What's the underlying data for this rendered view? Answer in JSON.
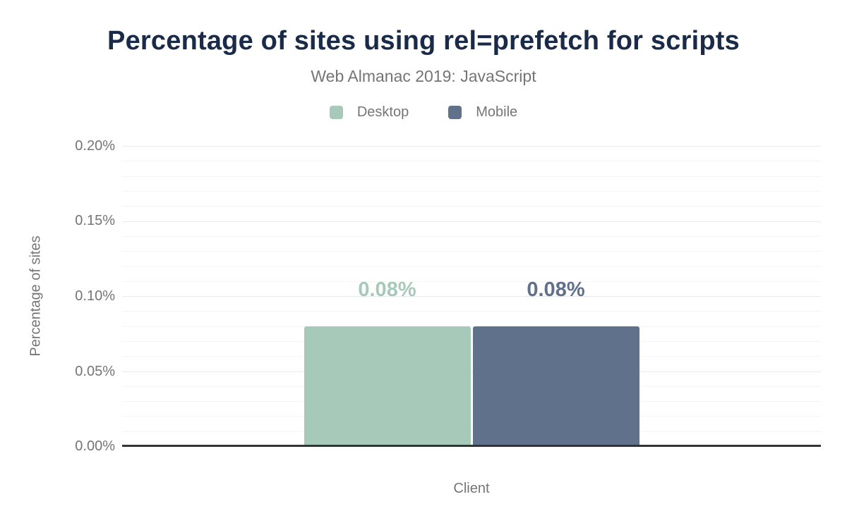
{
  "chart_data": {
    "type": "bar",
    "title": "Percentage of sites using rel=prefetch for scripts",
    "subtitle": "Web Almanac 2019: JavaScript",
    "xlabel": "Client",
    "ylabel": "Percentage of sites",
    "ylim": [
      0,
      0.2
    ],
    "ytick_step": 0.05,
    "minor_tick_step": 0.01,
    "yticks": [
      "0.00%",
      "0.05%",
      "0.10%",
      "0.15%",
      "0.20%"
    ],
    "grid": "on",
    "legend_position": "top",
    "series": [
      {
        "name": "Desktop",
        "value": 0.08,
        "label": "0.08%",
        "color": "#a7c9ba"
      },
      {
        "name": "Mobile",
        "value": 0.08,
        "label": "0.08%",
        "color": "#60718c"
      }
    ]
  },
  "colors": {
    "title": "#1a2b49",
    "text_muted": "#757575",
    "axis_line": "#333333",
    "gridline_major": "#e9e9e9",
    "gridline_minor": "#f5f5f5",
    "background": "#ffffff"
  }
}
